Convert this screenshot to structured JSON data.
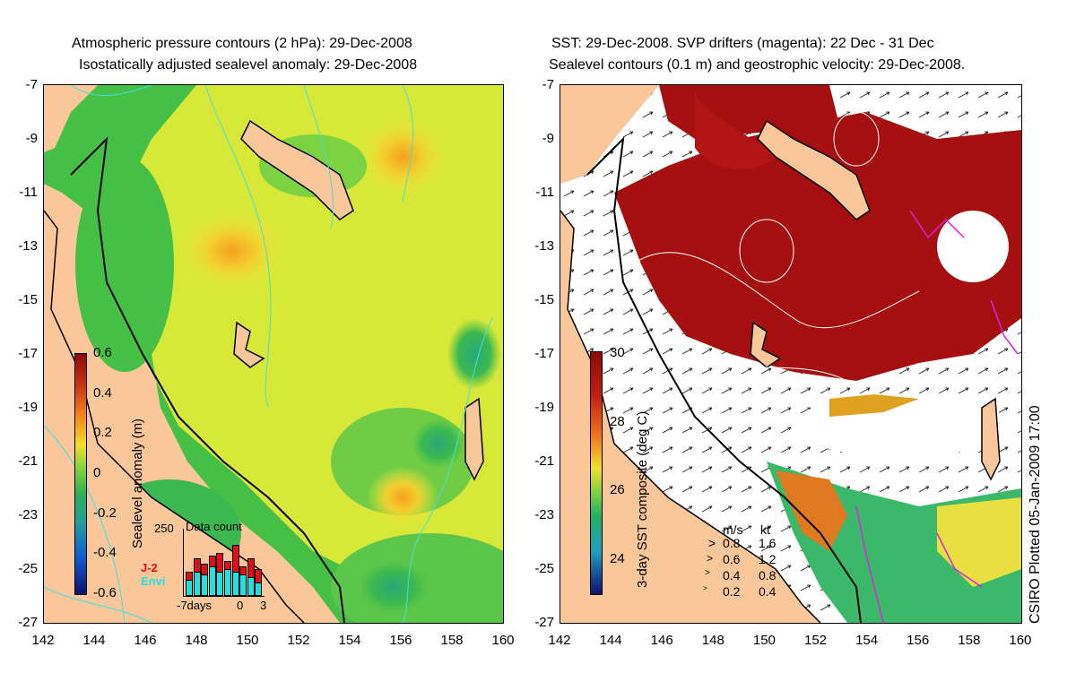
{
  "left_panel": {
    "title_line1": "Atmospheric pressure contours (2 hPa): 29-Dec-2008",
    "title_line2": "Isostatically adjusted sealevel anomaly: 29-Dec-2008",
    "colorbar_label": "Sealevel anomaly (m)",
    "colorbar_ticks": [
      "0.6",
      "0.4",
      "0.2",
      "0",
      "-0.2",
      "-0.4",
      "-0.6"
    ],
    "data_count": {
      "title": "Data count",
      "ymax_label": "250",
      "legend_j2": "J-2",
      "legend_envi": "Envi",
      "x_labels": [
        "-7days",
        "0",
        "3"
      ],
      "bars_total": [
        0.45,
        0.7,
        0.6,
        0.75,
        0.8,
        0.65,
        0.95,
        0.55,
        0.7,
        0.5
      ],
      "bars_envi": [
        0.3,
        0.45,
        0.4,
        0.55,
        0.45,
        0.5,
        0.45,
        0.4,
        0.35,
        0.25
      ]
    }
  },
  "right_panel": {
    "title_line1": "SST: 29-Dec-2008. SVP drifters (magenta): 22 Dec - 31 Dec",
    "title_line2": "Sealevel contours (0.1 m) and geostrophic velocity: 29-Dec-2008.",
    "colorbar_label": "3-day SST composite (deg C)",
    "colorbar_ticks": [
      "30",
      "28",
      "26",
      "24"
    ],
    "velocity_legend": {
      "header_ms": "m/s",
      "header_kt": "kt",
      "rows": [
        {
          "ms": "0.8",
          "kt": "1.6"
        },
        {
          "ms": "0.6",
          "kt": "1.2"
        },
        {
          "ms": "0.4",
          "kt": "0.8"
        },
        {
          "ms": "0.2",
          "kt": "0.4"
        }
      ]
    }
  },
  "y_ticks": [
    "-7",
    "-9",
    "-11",
    "-13",
    "-15",
    "-17",
    "-19",
    "-21",
    "-23",
    "-25",
    "-27"
  ],
  "x_ticks": [
    "142",
    "144",
    "146",
    "148",
    "150",
    "152",
    "154",
    "156",
    "158",
    "160"
  ],
  "credit": "CSIRO Plotted 05-Jan-2009 17:00",
  "colors": {
    "land": "#f9c79a",
    "sst_warm": "#a50f0f",
    "sla_green": "#4cc24c",
    "sla_yellow": "#f0ec30",
    "drifter": "#e020e0"
  }
}
